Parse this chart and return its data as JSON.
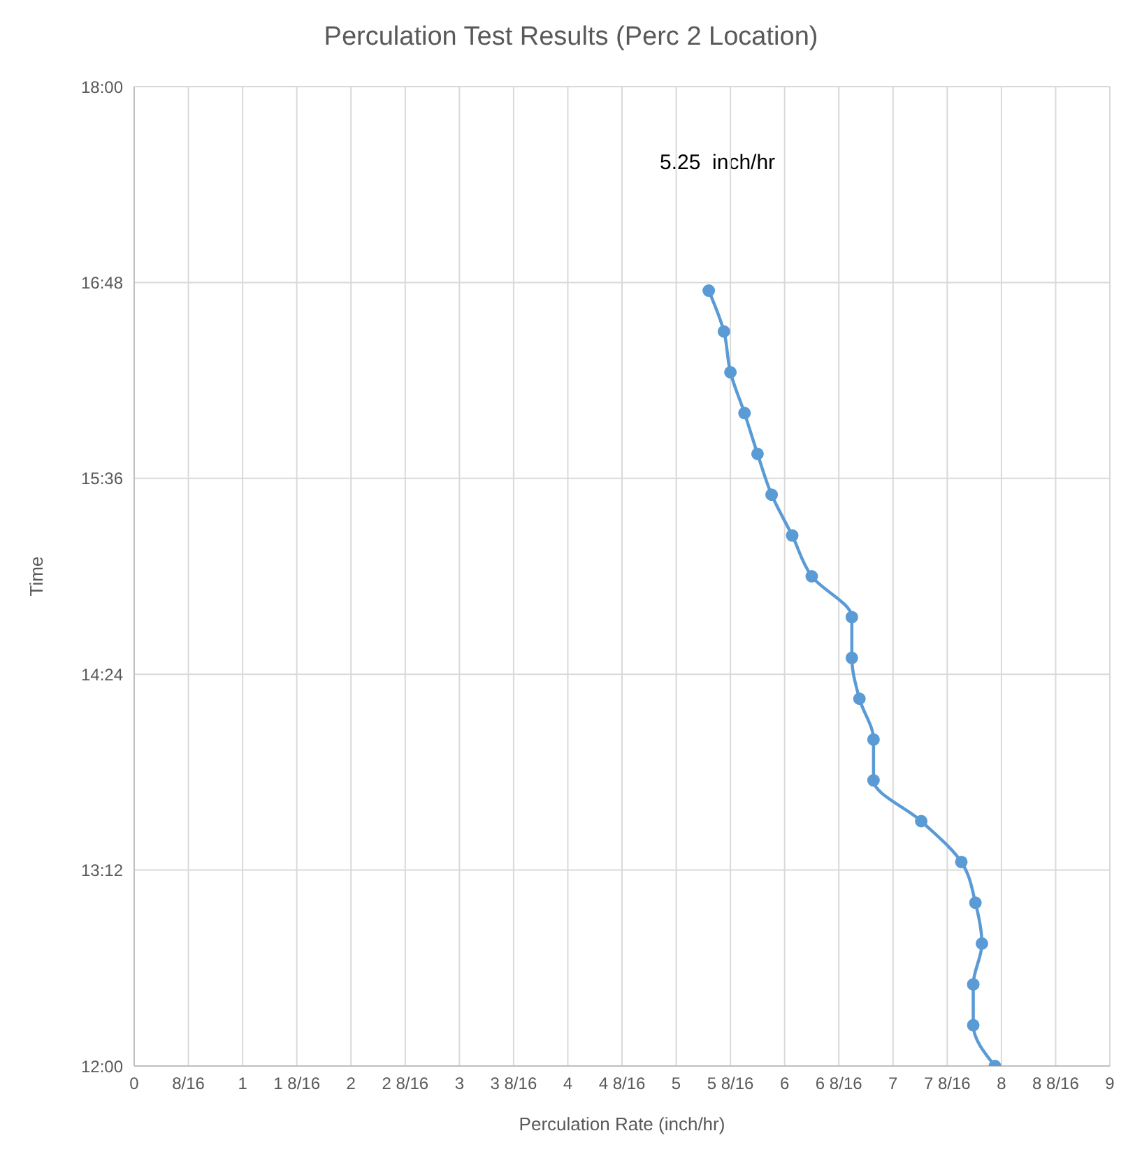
{
  "chart_data": {
    "type": "line",
    "title": "Perculation Test Results (Perc 2 Location)",
    "xlabel": "Perculation Rate (inch/hr)",
    "ylabel": "Time",
    "annotations": [
      "5.25  inch/hr"
    ],
    "x": [
      7.94,
      7.74,
      7.74,
      7.82,
      7.76,
      7.63,
      7.26,
      6.82,
      6.82,
      6.69,
      6.62,
      6.62,
      6.25,
      6.07,
      5.88,
      5.75,
      5.63,
      5.5,
      5.44,
      5.3
    ],
    "series": [
      {
        "color": "#5b9bd5",
        "values": [
          12,
          12.25,
          12.5,
          12.75,
          13,
          13.25,
          13.5,
          13.75,
          14,
          14.25,
          14.5,
          14.75,
          15,
          15.25,
          15.5,
          15.75,
          16,
          16.25,
          16.5,
          16.75
        ]
      }
    ],
    "xlim": [
      0,
      9
    ],
    "xticks": [
      0,
      {
        "value": 0.5,
        "label": "8/16"
      },
      1,
      {
        "value": 1.5,
        "label": "1 8/16"
      },
      2,
      {
        "value": 2.5,
        "label": "2 8/16"
      },
      3,
      {
        "value": 3.5,
        "label": "3 8/16"
      },
      4,
      {
        "value": 4.5,
        "label": "4 8/16"
      },
      5,
      {
        "value": 5.5,
        "label": "5 8/16"
      },
      6,
      {
        "value": 6.5,
        "label": "6 8/16"
      },
      7,
      {
        "value": 7.5,
        "label": "7 8/16"
      },
      8,
      {
        "value": 8.5,
        "label": "8 8/16"
      },
      9
    ],
    "ylim": [
      12,
      18
    ],
    "yticks": [
      {
        "value": 12,
        "label": "12:00"
      },
      {
        "value": 13.2,
        "label": "13:12"
      },
      {
        "value": 14.4,
        "label": "14:24"
      },
      {
        "value": 15.6,
        "label": "15:36"
      },
      {
        "value": 16.8,
        "label": "16:48"
      },
      {
        "value": 18,
        "label": "18:00"
      }
    ],
    "grid": true,
    "marker": "circle",
    "line_style": "solid"
  }
}
